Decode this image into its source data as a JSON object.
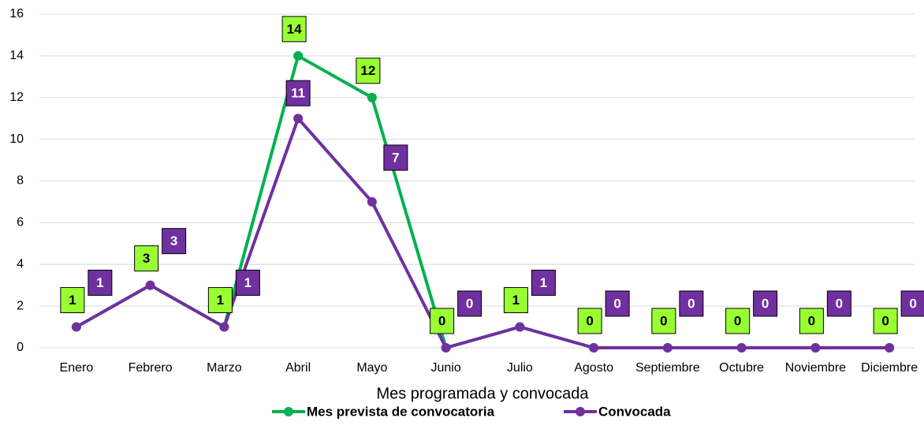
{
  "chart_data": {
    "type": "line",
    "x_label": "Mes programada y convocada",
    "categories": [
      "Enero",
      "Febrero",
      "Marzo",
      "Abril",
      "Mayo",
      "Junio",
      "Julio",
      "Agosto",
      "Septiembre",
      "Octubre",
      "Noviembre",
      "Diciembre"
    ],
    "series": [
      {
        "name": "Mes prevista de convocatoria",
        "color": "#00b050",
        "label_color": "#99ff33",
        "values": [
          1,
          3,
          1,
          14,
          12,
          0,
          1,
          0,
          0,
          0,
          0,
          0
        ]
      },
      {
        "name": "Convocada",
        "color": "#7030a0",
        "label_color": "#7030a0",
        "values": [
          1,
          3,
          1,
          11,
          7,
          0,
          1,
          0,
          0,
          0,
          0,
          0
        ]
      }
    ],
    "ylim": [
      0,
      16
    ],
    "yticks": [
      0,
      2,
      4,
      6,
      8,
      10,
      12,
      14,
      16
    ],
    "grid": true,
    "legend": "bottom"
  }
}
